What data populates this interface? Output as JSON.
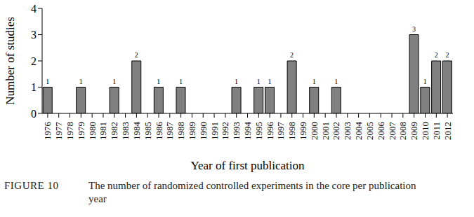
{
  "chart_data": {
    "type": "bar",
    "figure_label": "FIGURE 10",
    "title": "The number of randomized controlled experiments in the core per publication year",
    "x_label": "Year of first publication",
    "y_label": "Number of studies",
    "categories": [
      "1976",
      "1977",
      "1978",
      "1979",
      "1980",
      "1981",
      "1982",
      "1983",
      "1984",
      "1985",
      "1986",
      "1987",
      "1988",
      "1989",
      "1990",
      "1991",
      "1992",
      "1993",
      "1994",
      "1995",
      "1996",
      "1997",
      "1998",
      "1999",
      "2000",
      "2001",
      "2002",
      "2003",
      "2004",
      "2005",
      "2006",
      "2007",
      "2008",
      "2009",
      "2010",
      "2011",
      "2012"
    ],
    "values": [
      1,
      0,
      0,
      1,
      0,
      0,
      1,
      0,
      2,
      0,
      1,
      0,
      1,
      0,
      0,
      0,
      0,
      1,
      0,
      1,
      1,
      0,
      2,
      0,
      1,
      0,
      1,
      0,
      0,
      0,
      0,
      0,
      0,
      3,
      1,
      2,
      2
    ],
    "color": "#808080",
    "ylim": [
      0,
      4
    ],
    "yticks": [
      0,
      1,
      2,
      3,
      4
    ],
    "grid": false,
    "data_labels": true
  }
}
